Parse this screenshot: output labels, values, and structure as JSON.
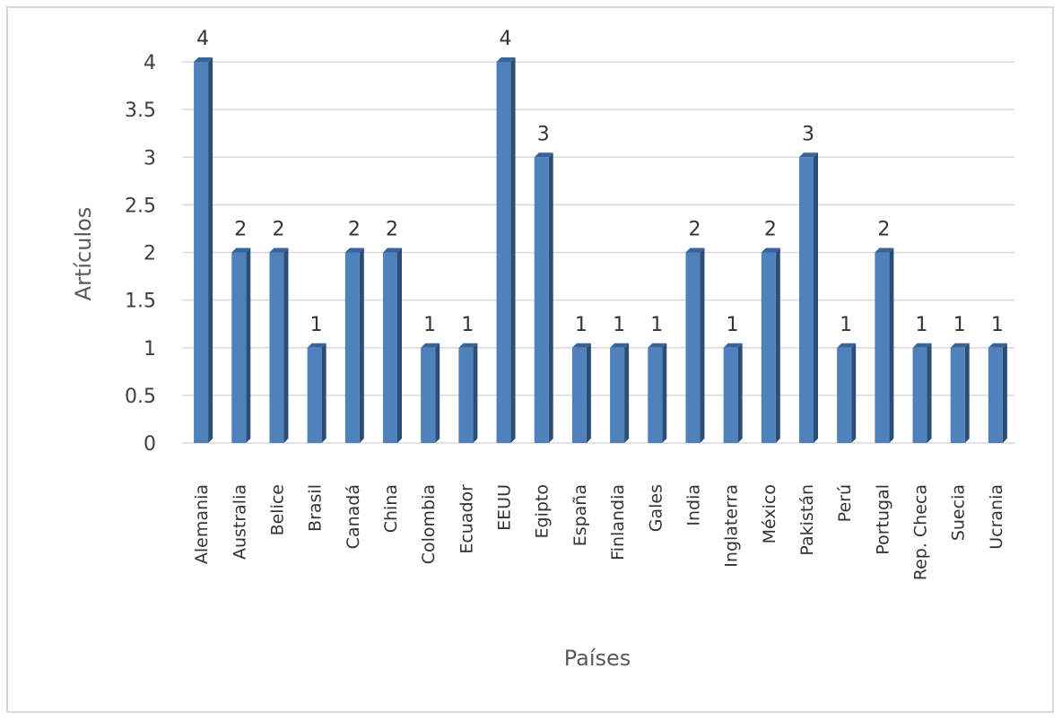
{
  "chart_data": {
    "type": "bar",
    "title": "",
    "xlabel": "Países",
    "ylabel": "Artículos",
    "ylim": [
      0,
      4
    ],
    "ytick_step": 0.5,
    "yticks": [
      "0",
      "0.5",
      "1",
      "1.5",
      "2",
      "2.5",
      "3",
      "3.5",
      "4"
    ],
    "grid": true,
    "legend": "none",
    "bar_color": "#4f81bd",
    "categories": [
      "Alemania",
      "Australia",
      "Belice",
      "Brasil",
      "Canadá",
      "China",
      "Colombia",
      "Ecuador",
      "EEUU",
      "Egipto",
      "España",
      "Finlandia",
      "Gales",
      "India",
      "Inglaterra",
      "México",
      "Pakistán",
      "Perú",
      "Portugal",
      "Rep. Checa",
      "Suecia",
      "Ucrania"
    ],
    "values": [
      4,
      2,
      2,
      1,
      2,
      2,
      1,
      1,
      4,
      3,
      1,
      1,
      1,
      2,
      1,
      2,
      3,
      1,
      2,
      1,
      1,
      1
    ]
  }
}
